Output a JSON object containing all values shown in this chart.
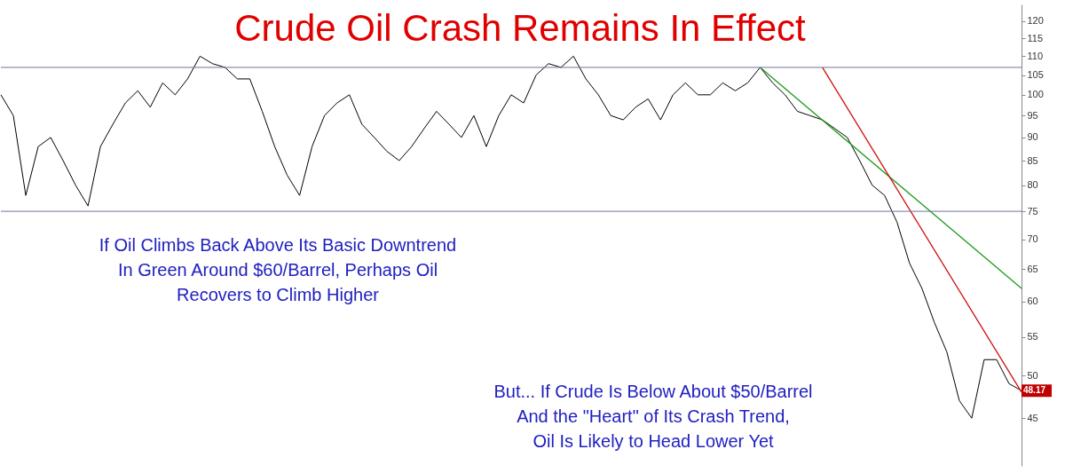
{
  "chart_data": {
    "type": "line",
    "title": "Crude Oil Crash Remains In Effect",
    "log": true,
    "grid": false,
    "tick_labels": "y",
    "ylim": [
      40,
      125
    ],
    "yticks": [
      45,
      50,
      55,
      60,
      65,
      70,
      75,
      80,
      85,
      90,
      95,
      100,
      105,
      110,
      115,
      120
    ],
    "categories": [
      null,
      null,
      null,
      null,
      null,
      null,
      null,
      null,
      null,
      null,
      null,
      null,
      null,
      null,
      null,
      null,
      null,
      null,
      null,
      null,
      null,
      null,
      null,
      null,
      null,
      null,
      null,
      null,
      null,
      null,
      null,
      null,
      null,
      null,
      null,
      null,
      null,
      null,
      null,
      null,
      null,
      null,
      null,
      null,
      null,
      null,
      null,
      null,
      null,
      null,
      null,
      null,
      null,
      null,
      null,
      null,
      null,
      null,
      null,
      null,
      null,
      null,
      null,
      null,
      null,
      null,
      null,
      null,
      null,
      null,
      null,
      null,
      null,
      null,
      null,
      null,
      null,
      null,
      null,
      null,
      null,
      null,
      null
    ],
    "series": [
      {
        "color": "#000000",
        "values": [
          100,
          95,
          78,
          88,
          90,
          85,
          80,
          76,
          88,
          93,
          98,
          101,
          97,
          103,
          100,
          104,
          110,
          108,
          107,
          104,
          104,
          96,
          88,
          82,
          78,
          88,
          95,
          98,
          100,
          93,
          90,
          87,
          85,
          88,
          92,
          96,
          93,
          90,
          95,
          88,
          95,
          100,
          98,
          105,
          108,
          107,
          110,
          104,
          100,
          95,
          94,
          97,
          99,
          94,
          100,
          103,
          100,
          100,
          103,
          101,
          103,
          107,
          103,
          100,
          96,
          95,
          94,
          92,
          90,
          85,
          80,
          78,
          73,
          66,
          62,
          57,
          53,
          47,
          45,
          52,
          52,
          49,
          48.17
        ]
      },
      {
        "color": "#1a9a1a",
        "values": [
          null,
          null,
          null,
          null,
          null,
          null,
          null,
          null,
          null,
          null,
          null,
          null,
          null,
          null,
          null,
          null,
          null,
          null,
          null,
          null,
          null,
          null,
          null,
          null,
          null,
          null,
          null,
          null,
          null,
          null,
          null,
          null,
          null,
          null,
          null,
          null,
          null,
          null,
          null,
          null,
          null,
          null,
          null,
          null,
          null,
          null,
          null,
          null,
          null,
          null,
          null,
          null,
          null,
          null,
          null,
          null,
          null,
          null,
          null,
          null,
          null,
          107,
          null,
          null,
          null,
          null,
          null,
          null,
          null,
          null,
          null,
          null,
          null,
          null,
          null,
          null,
          null,
          null,
          null,
          null,
          null,
          null,
          62
        ]
      },
      {
        "color": "#d01010",
        "values": [
          null,
          null,
          null,
          null,
          null,
          null,
          null,
          null,
          null,
          null,
          null,
          null,
          null,
          null,
          null,
          null,
          null,
          null,
          null,
          null,
          null,
          null,
          null,
          null,
          null,
          null,
          null,
          null,
          null,
          null,
          null,
          null,
          null,
          null,
          null,
          null,
          null,
          null,
          null,
          null,
          null,
          null,
          null,
          null,
          null,
          null,
          null,
          null,
          null,
          null,
          null,
          null,
          null,
          null,
          null,
          null,
          null,
          null,
          null,
          null,
          null,
          null,
          null,
          null,
          null,
          null,
          107,
          null,
          null,
          null,
          null,
          null,
          null,
          null,
          null,
          null,
          null,
          null,
          null,
          null,
          null,
          null,
          48
        ]
      }
    ],
    "ref_lines": [
      {
        "axis": "y",
        "value": 107,
        "color": "#7070a8"
      },
      {
        "axis": "y",
        "value": 75,
        "color": "#7070a8"
      }
    ],
    "annotations": [
      "If Oil Climbs Back Above Its Basic Downtrend\nIn Green Around $60/Barrel, Perhaps Oil\nRecovers to Climb Higher",
      "But... If Crude Is Below About $50/Barrel\nAnd the \"Heart\" of Its Crash Trend,\nOil Is Likely to Head Lower Yet",
      "48.17"
    ]
  }
}
